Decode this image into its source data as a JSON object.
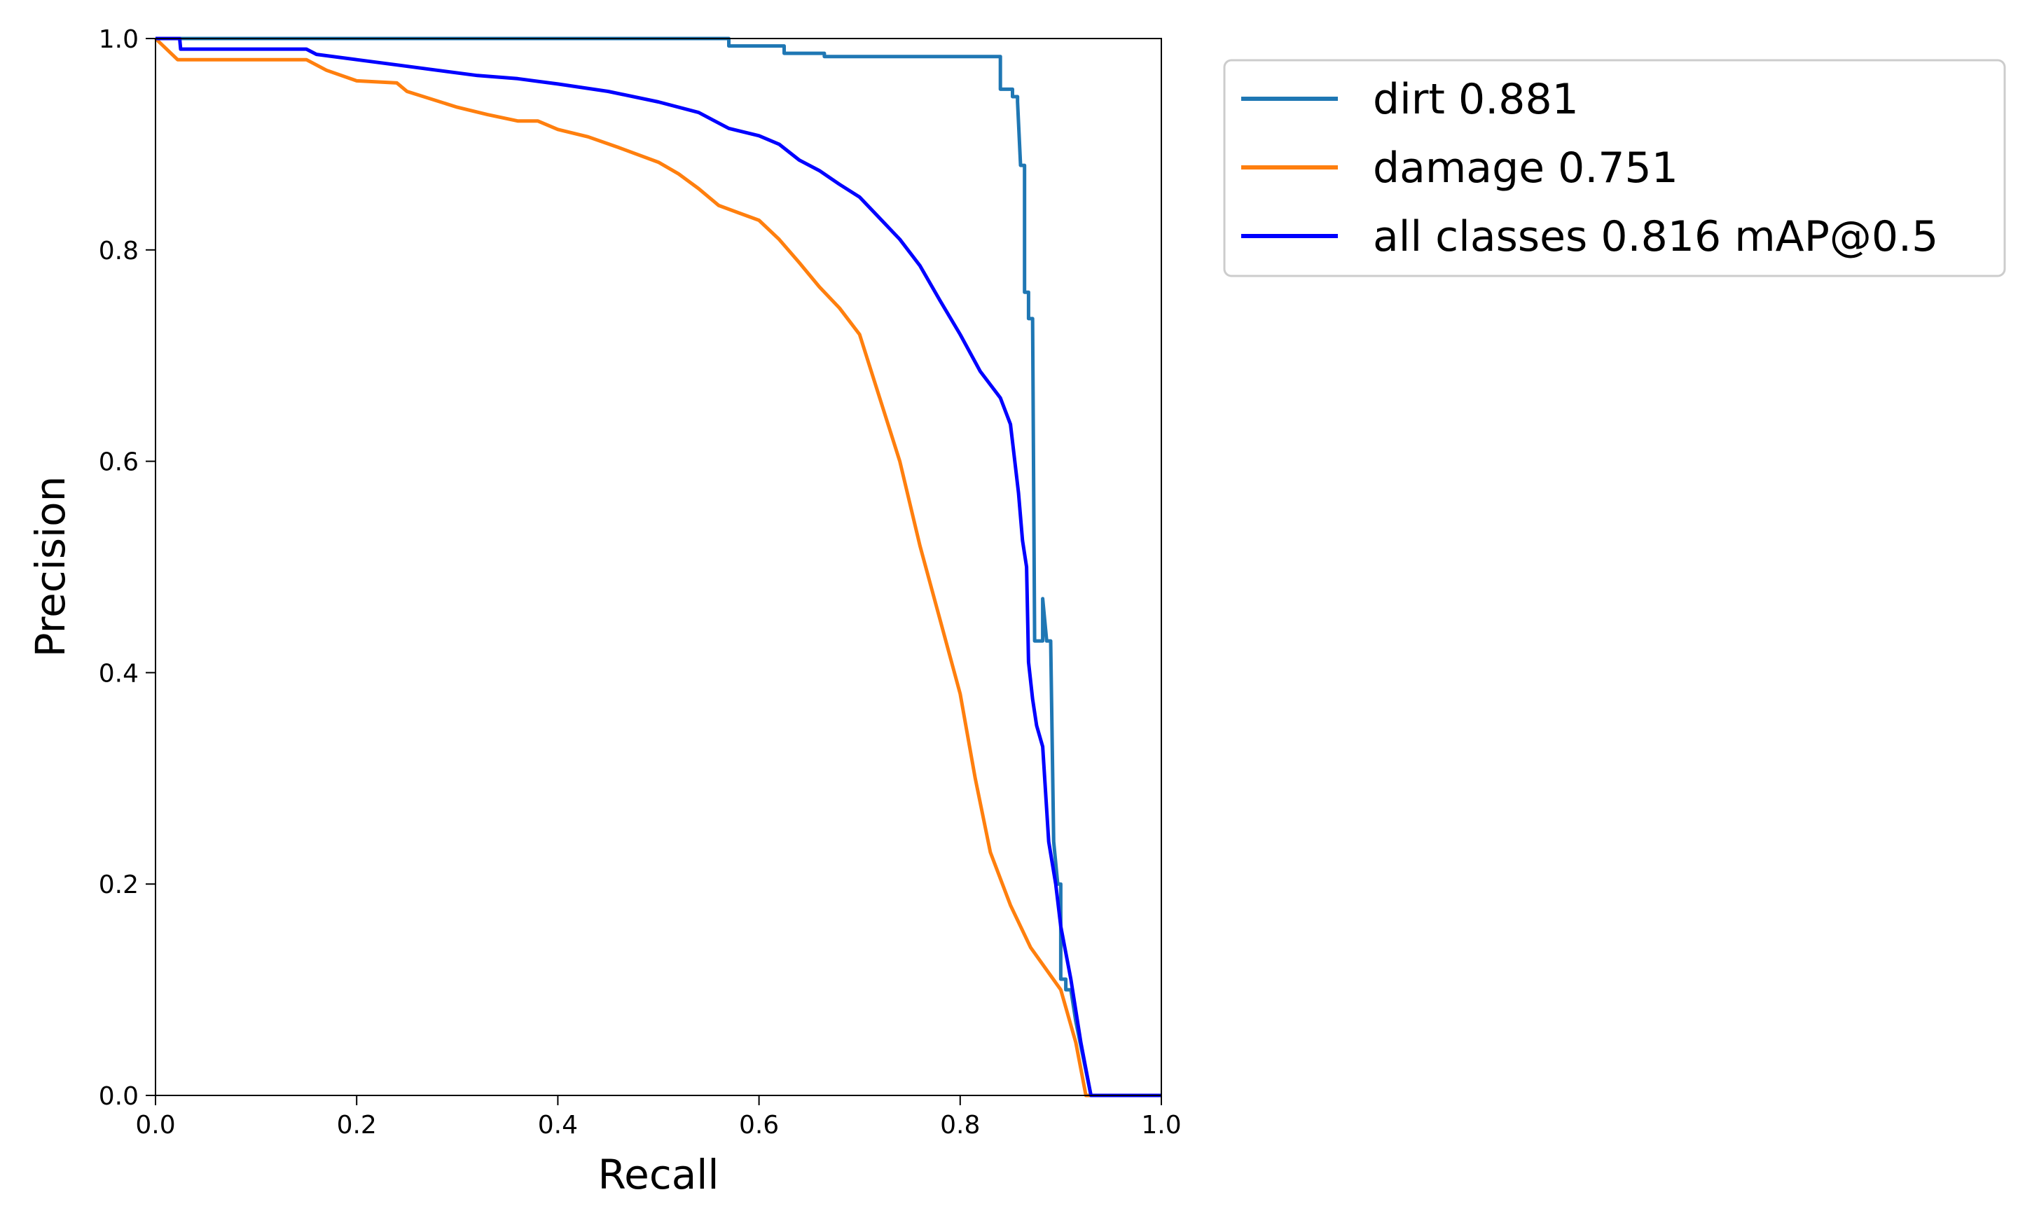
{
  "chart_data": {
    "type": "line",
    "title": "",
    "xlabel": "Recall",
    "ylabel": "Precision",
    "xlim": [
      0,
      1
    ],
    "ylim": [
      0,
      1
    ],
    "xticks": [
      "0.0",
      "0.2",
      "0.4",
      "0.6",
      "0.8",
      "1.0"
    ],
    "yticks": [
      "0.0",
      "0.2",
      "0.4",
      "0.6",
      "0.8",
      "1.0"
    ],
    "grid": false,
    "legend_position": "outside-top-right",
    "series": [
      {
        "name": "dirt 0.881",
        "color": "#1f77b4",
        "points": [
          [
            0.0,
            1.0
          ],
          [
            0.57,
            1.0
          ],
          [
            0.57,
            0.993
          ],
          [
            0.625,
            0.993
          ],
          [
            0.625,
            0.986
          ],
          [
            0.665,
            0.986
          ],
          [
            0.665,
            0.983
          ],
          [
            0.84,
            0.983
          ],
          [
            0.84,
            0.952
          ],
          [
            0.852,
            0.952
          ],
          [
            0.852,
            0.945
          ],
          [
            0.857,
            0.945
          ],
          [
            0.857,
            0.94
          ],
          [
            0.86,
            0.88
          ],
          [
            0.864,
            0.88
          ],
          [
            0.864,
            0.76
          ],
          [
            0.868,
            0.76
          ],
          [
            0.868,
            0.735
          ],
          [
            0.872,
            0.735
          ],
          [
            0.874,
            0.43
          ],
          [
            0.882,
            0.43
          ],
          [
            0.882,
            0.47
          ],
          [
            0.886,
            0.43
          ],
          [
            0.89,
            0.43
          ],
          [
            0.893,
            0.24
          ],
          [
            0.897,
            0.2
          ],
          [
            0.9,
            0.2
          ],
          [
            0.9,
            0.11
          ],
          [
            0.905,
            0.11
          ],
          [
            0.905,
            0.1
          ],
          [
            0.91,
            0.1
          ],
          [
            0.915,
            0.07
          ],
          [
            0.93,
            0.0
          ],
          [
            1.0,
            0.0
          ]
        ]
      },
      {
        "name": "damage 0.751",
        "color": "#ff7f0e",
        "points": [
          [
            0.0,
            1.0
          ],
          [
            0.022,
            0.98
          ],
          [
            0.15,
            0.98
          ],
          [
            0.17,
            0.97
          ],
          [
            0.2,
            0.96
          ],
          [
            0.24,
            0.958
          ],
          [
            0.25,
            0.95
          ],
          [
            0.3,
            0.935
          ],
          [
            0.33,
            0.928
          ],
          [
            0.36,
            0.922
          ],
          [
            0.38,
            0.922
          ],
          [
            0.4,
            0.914
          ],
          [
            0.43,
            0.907
          ],
          [
            0.46,
            0.897
          ],
          [
            0.5,
            0.883
          ],
          [
            0.52,
            0.872
          ],
          [
            0.54,
            0.858
          ],
          [
            0.56,
            0.842
          ],
          [
            0.58,
            0.835
          ],
          [
            0.6,
            0.828
          ],
          [
            0.62,
            0.81
          ],
          [
            0.64,
            0.788
          ],
          [
            0.66,
            0.765
          ],
          [
            0.68,
            0.745
          ],
          [
            0.7,
            0.72
          ],
          [
            0.72,
            0.66
          ],
          [
            0.74,
            0.6
          ],
          [
            0.76,
            0.52
          ],
          [
            0.78,
            0.45
          ],
          [
            0.8,
            0.38
          ],
          [
            0.815,
            0.3
          ],
          [
            0.83,
            0.23
          ],
          [
            0.85,
            0.18
          ],
          [
            0.87,
            0.14
          ],
          [
            0.9,
            0.1
          ],
          [
            0.915,
            0.05
          ],
          [
            0.925,
            0.0
          ],
          [
            1.0,
            0.0
          ]
        ]
      },
      {
        "name": "all classes 0.816 mAP@0.5",
        "color": "#0000ff",
        "points": [
          [
            0.0,
            1.0
          ],
          [
            0.024,
            1.0
          ],
          [
            0.025,
            0.99
          ],
          [
            0.15,
            0.99
          ],
          [
            0.16,
            0.985
          ],
          [
            0.2,
            0.98
          ],
          [
            0.24,
            0.975
          ],
          [
            0.28,
            0.97
          ],
          [
            0.32,
            0.965
          ],
          [
            0.36,
            0.962
          ],
          [
            0.4,
            0.957
          ],
          [
            0.45,
            0.95
          ],
          [
            0.5,
            0.94
          ],
          [
            0.54,
            0.93
          ],
          [
            0.57,
            0.915
          ],
          [
            0.6,
            0.908
          ],
          [
            0.62,
            0.9
          ],
          [
            0.64,
            0.885
          ],
          [
            0.66,
            0.875
          ],
          [
            0.68,
            0.862
          ],
          [
            0.7,
            0.85
          ],
          [
            0.72,
            0.83
          ],
          [
            0.74,
            0.81
          ],
          [
            0.76,
            0.785
          ],
          [
            0.78,
            0.752
          ],
          [
            0.8,
            0.72
          ],
          [
            0.82,
            0.685
          ],
          [
            0.84,
            0.66
          ],
          [
            0.85,
            0.635
          ],
          [
            0.858,
            0.57
          ],
          [
            0.862,
            0.525
          ],
          [
            0.866,
            0.5
          ],
          [
            0.868,
            0.41
          ],
          [
            0.872,
            0.375
          ],
          [
            0.876,
            0.35
          ],
          [
            0.882,
            0.33
          ],
          [
            0.888,
            0.24
          ],
          [
            0.895,
            0.2
          ],
          [
            0.9,
            0.16
          ],
          [
            0.91,
            0.11
          ],
          [
            0.92,
            0.05
          ],
          [
            0.93,
            0.0
          ],
          [
            1.0,
            0.0
          ]
        ]
      }
    ]
  }
}
